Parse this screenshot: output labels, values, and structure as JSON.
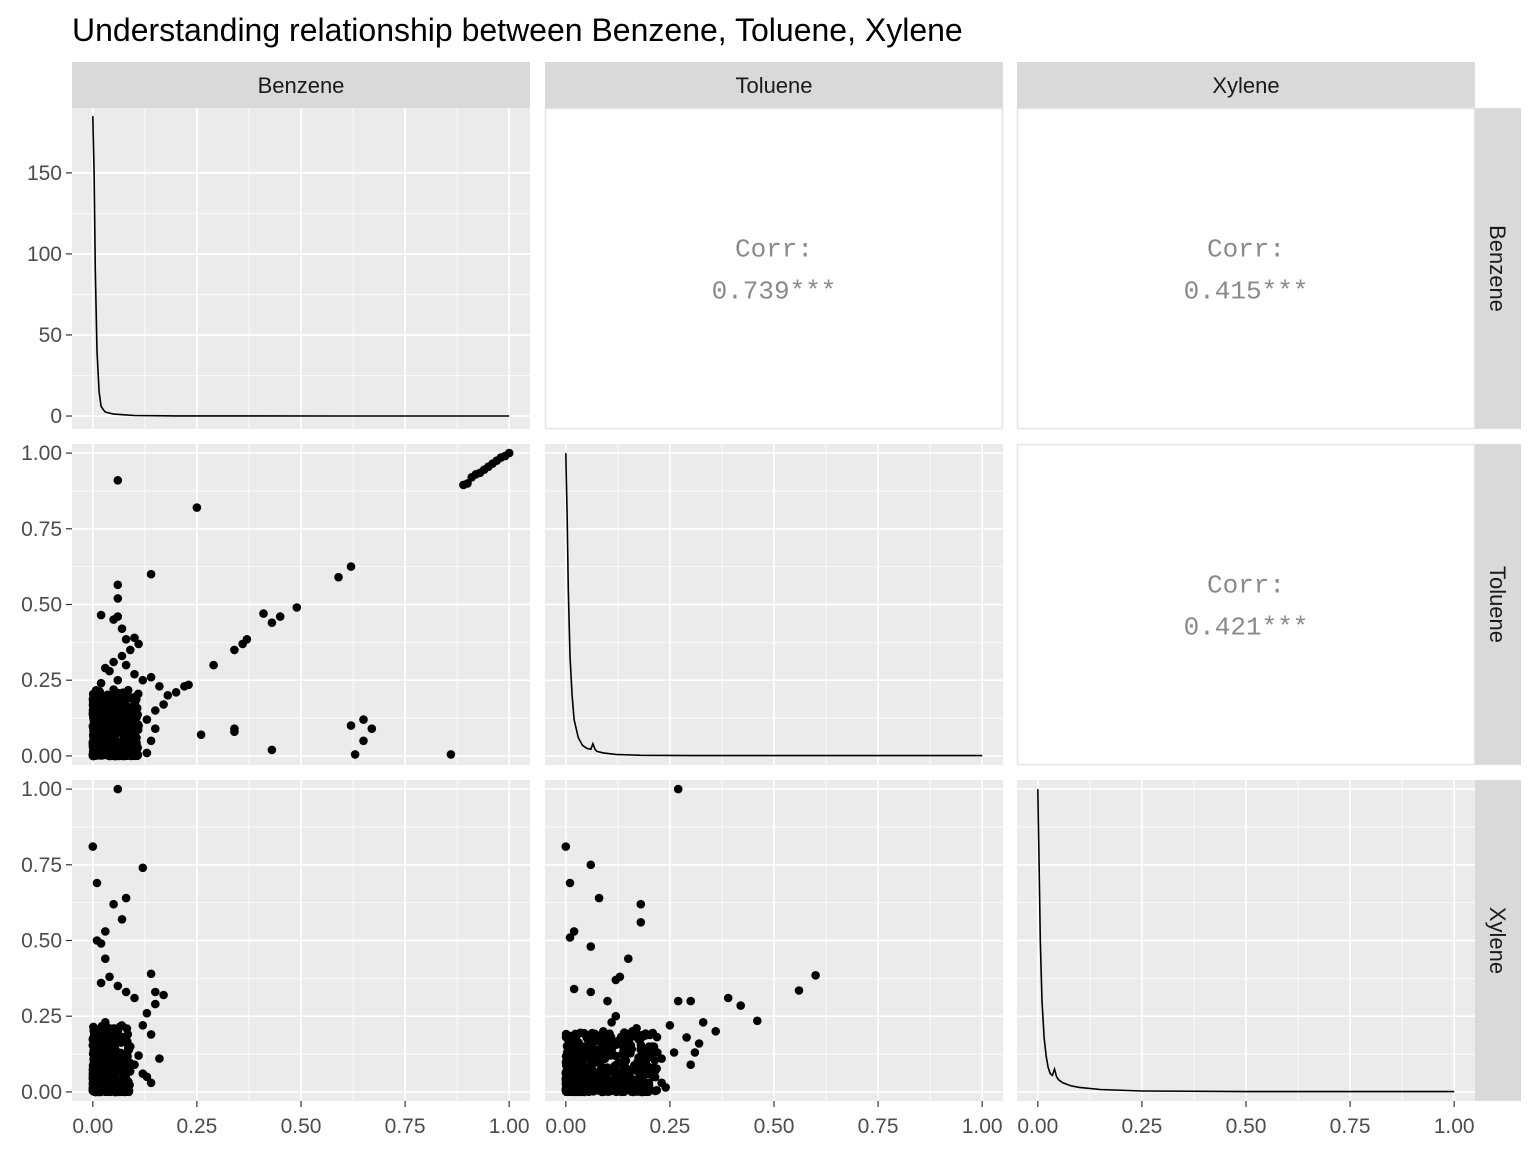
{
  "title": "Understanding relationship between Benzene, Toluene, Xylene",
  "variables": [
    "Benzene",
    "Toluene",
    "Xylene"
  ],
  "colors": {
    "panel_bg": "#EBEBEB",
    "grid_major": "#FFFFFF",
    "strip_bg": "#D9D9D9",
    "point": "#000000",
    "corr_text": "#8A8A8A",
    "blank_panel_border": "#E5E5E5"
  },
  "chart_data": {
    "type": "scatter-matrix",
    "title": "Understanding relationship between Benzene, Toluene, Xylene",
    "x_ticks": [
      "0.00",
      "0.25",
      "0.50",
      "0.75",
      "1.00"
    ],
    "xlim": [
      0,
      1
    ],
    "row_axes": [
      {
        "name": "Benzene",
        "ylim": [
          -8,
          190
        ],
        "ticks": [
          0,
          50,
          100,
          150
        ],
        "tick_labels": [
          "0",
          "50",
          "100",
          "150"
        ]
      },
      {
        "name": "Toluene",
        "ylim": [
          -0.03,
          1.03
        ],
        "ticks": [
          0,
          0.25,
          0.5,
          0.75,
          1
        ],
        "tick_labels": [
          "0.00",
          "0.25",
          "0.50",
          "0.75",
          "1.00"
        ]
      },
      {
        "name": "Xylene",
        "ylim": [
          -0.03,
          1.03
        ],
        "ticks": [
          0,
          0.25,
          0.5,
          0.75,
          1
        ],
        "tick_labels": [
          "0.00",
          "0.25",
          "0.50",
          "0.75",
          "1.00"
        ]
      }
    ],
    "correlations": [
      {
        "row": 0,
        "col": 1,
        "label": "Corr:",
        "value": "0.739***"
      },
      {
        "row": 0,
        "col": 2,
        "label": "Corr:",
        "value": "0.415***"
      },
      {
        "row": 1,
        "col": 2,
        "label": "Corr:",
        "value": "0.421***"
      }
    ],
    "densities": [
      {
        "variable": "Benzene",
        "x": [
          0,
          0.003,
          0.006,
          0.01,
          0.015,
          0.02,
          0.025,
          0.03,
          0.05,
          0.1,
          0.2,
          0.4,
          0.6,
          0.8,
          1.0
        ],
        "y": [
          185,
          150,
          90,
          40,
          15,
          6,
          4,
          2.5,
          1.2,
          0.3,
          0.1,
          0.05,
          0.04,
          0.03,
          0.02
        ]
      },
      {
        "variable": "Toluene",
        "x": [
          0,
          0.003,
          0.006,
          0.01,
          0.015,
          0.02,
          0.03,
          0.04,
          0.05,
          0.06,
          0.065,
          0.07,
          0.075,
          0.09,
          0.12,
          0.18,
          0.3,
          0.5,
          0.75,
          1.0
        ],
        "y": [
          1.0,
          0.8,
          0.55,
          0.33,
          0.2,
          0.12,
          0.06,
          0.035,
          0.025,
          0.022,
          0.04,
          0.022,
          0.015,
          0.01,
          0.005,
          0.002,
          0.001,
          0.001,
          0.001,
          0.001
        ]
      },
      {
        "variable": "Xylene",
        "x": [
          0,
          0.003,
          0.006,
          0.01,
          0.015,
          0.02,
          0.025,
          0.03,
          0.035,
          0.04,
          0.045,
          0.05,
          0.06,
          0.08,
          0.1,
          0.15,
          0.25,
          0.5,
          0.75,
          1.0
        ],
        "y": [
          1.0,
          0.75,
          0.5,
          0.3,
          0.18,
          0.12,
          0.08,
          0.06,
          0.055,
          0.075,
          0.05,
          0.04,
          0.03,
          0.02,
          0.015,
          0.008,
          0.003,
          0.001,
          0.001,
          0.001
        ]
      }
    ],
    "scatter": [
      {
        "row": 1,
        "col": 0,
        "x_var": "Benzene",
        "y_var": "Toluene",
        "points": [
          [
            0.06,
            0.91
          ],
          [
            0.25,
            0.82
          ],
          [
            0.14,
            0.6
          ],
          [
            0.06,
            0.565
          ],
          [
            0.06,
            0.52
          ],
          [
            0.02,
            0.465
          ],
          [
            0.05,
            0.45
          ],
          [
            0.06,
            0.46
          ],
          [
            0.07,
            0.42
          ],
          [
            0.08,
            0.385
          ],
          [
            0.1,
            0.39
          ],
          [
            0.11,
            0.37
          ],
          [
            0.09,
            0.35
          ],
          [
            0.07,
            0.33
          ],
          [
            0.05,
            0.31
          ],
          [
            0.08,
            0.3
          ],
          [
            0.03,
            0.29
          ],
          [
            0.04,
            0.28
          ],
          [
            0.1,
            0.27
          ],
          [
            0.12,
            0.25
          ],
          [
            0.14,
            0.26
          ],
          [
            0.06,
            0.25
          ],
          [
            0.02,
            0.24
          ],
          [
            0.16,
            0.23
          ],
          [
            0.18,
            0.2
          ],
          [
            0.2,
            0.21
          ],
          [
            0.22,
            0.23
          ],
          [
            0.23,
            0.235
          ],
          [
            0.17,
            0.17
          ],
          [
            0.15,
            0.15
          ],
          [
            0.13,
            0.12
          ],
          [
            0.11,
            0.1
          ],
          [
            0.15,
            0.09
          ],
          [
            0.14,
            0.05
          ],
          [
            0.13,
            0.01
          ],
          [
            0.26,
            0.07
          ],
          [
            0.29,
            0.3
          ],
          [
            0.34,
            0.35
          ],
          [
            0.36,
            0.37
          ],
          [
            0.37,
            0.385
          ],
          [
            0.34,
            0.08
          ],
          [
            0.34,
            0.09
          ],
          [
            0.41,
            0.47
          ],
          [
            0.43,
            0.44
          ],
          [
            0.45,
            0.46
          ],
          [
            0.49,
            0.49
          ],
          [
            0.43,
            0.02
          ],
          [
            0.59,
            0.59
          ],
          [
            0.62,
            0.625
          ],
          [
            0.62,
            0.1
          ],
          [
            0.63,
            0.005
          ],
          [
            0.65,
            0.12
          ],
          [
            0.65,
            0.05
          ],
          [
            0.67,
            0.09
          ],
          [
            0.86,
            0.005
          ],
          [
            0.89,
            0.895
          ],
          [
            0.9,
            0.9
          ],
          [
            0.91,
            0.92
          ],
          [
            0.92,
            0.93
          ],
          [
            0.93,
            0.935
          ],
          [
            0.94,
            0.945
          ],
          [
            0.95,
            0.955
          ],
          [
            0.96,
            0.965
          ],
          [
            0.97,
            0.975
          ],
          [
            0.98,
            0.985
          ],
          [
            0.99,
            0.99
          ],
          [
            1.0,
            1.0
          ]
        ]
      },
      {
        "row": 2,
        "col": 0,
        "x_var": "Benzene",
        "y_var": "Xylene",
        "points": [
          [
            0.06,
            1.0
          ],
          [
            0.0,
            0.81
          ],
          [
            0.01,
            0.69
          ],
          [
            0.12,
            0.74
          ],
          [
            0.08,
            0.64
          ],
          [
            0.05,
            0.62
          ],
          [
            0.07,
            0.57
          ],
          [
            0.03,
            0.53
          ],
          [
            0.01,
            0.5
          ],
          [
            0.02,
            0.49
          ],
          [
            0.03,
            0.44
          ],
          [
            0.04,
            0.38
          ],
          [
            0.02,
            0.36
          ],
          [
            0.06,
            0.35
          ],
          [
            0.08,
            0.33
          ],
          [
            0.1,
            0.31
          ],
          [
            0.14,
            0.39
          ],
          [
            0.17,
            0.32
          ],
          [
            0.15,
            0.33
          ],
          [
            0.13,
            0.26
          ],
          [
            0.15,
            0.29
          ],
          [
            0.12,
            0.22
          ],
          [
            0.14,
            0.19
          ],
          [
            0.16,
            0.11
          ],
          [
            0.13,
            0.05
          ],
          [
            0.14,
            0.03
          ],
          [
            0.12,
            0.06
          ],
          [
            0.1,
            0.09
          ],
          [
            0.09,
            0.15
          ],
          [
            0.11,
            0.12
          ],
          [
            0.05,
            0.2
          ],
          [
            0.03,
            0.23
          ]
        ]
      },
      {
        "row": 2,
        "col": 1,
        "x_var": "Toluene",
        "y_var": "Xylene",
        "points": [
          [
            0.27,
            1.0
          ],
          [
            0.0,
            0.81
          ],
          [
            0.06,
            0.75
          ],
          [
            0.01,
            0.69
          ],
          [
            0.08,
            0.64
          ],
          [
            0.18,
            0.62
          ],
          [
            0.18,
            0.56
          ],
          [
            0.02,
            0.53
          ],
          [
            0.01,
            0.51
          ],
          [
            0.06,
            0.48
          ],
          [
            0.15,
            0.44
          ],
          [
            0.13,
            0.38
          ],
          [
            0.12,
            0.37
          ],
          [
            0.02,
            0.34
          ],
          [
            0.06,
            0.33
          ],
          [
            0.1,
            0.3
          ],
          [
            0.27,
            0.3
          ],
          [
            0.3,
            0.3
          ],
          [
            0.39,
            0.31
          ],
          [
            0.42,
            0.285
          ],
          [
            0.46,
            0.235
          ],
          [
            0.36,
            0.2
          ],
          [
            0.33,
            0.23
          ],
          [
            0.29,
            0.18
          ],
          [
            0.25,
            0.22
          ],
          [
            0.32,
            0.16
          ],
          [
            0.31,
            0.13
          ],
          [
            0.3,
            0.09
          ],
          [
            0.26,
            0.13
          ],
          [
            0.23,
            0.11
          ],
          [
            0.22,
            0.13
          ],
          [
            0.2,
            0.15
          ],
          [
            0.18,
            0.14
          ],
          [
            0.21,
            0.05
          ],
          [
            0.23,
            0.03
          ],
          [
            0.24,
            0.015
          ],
          [
            0.2,
            0.02
          ],
          [
            0.56,
            0.335
          ],
          [
            0.6,
            0.385
          ],
          [
            0.16,
            0.2
          ],
          [
            0.17,
            0.21
          ],
          [
            0.15,
            0.17
          ],
          [
            0.14,
            0.08
          ],
          [
            0.12,
            0.25
          ],
          [
            0.11,
            0.23
          ],
          [
            0.09,
            0.2
          ]
        ]
      }
    ]
  }
}
